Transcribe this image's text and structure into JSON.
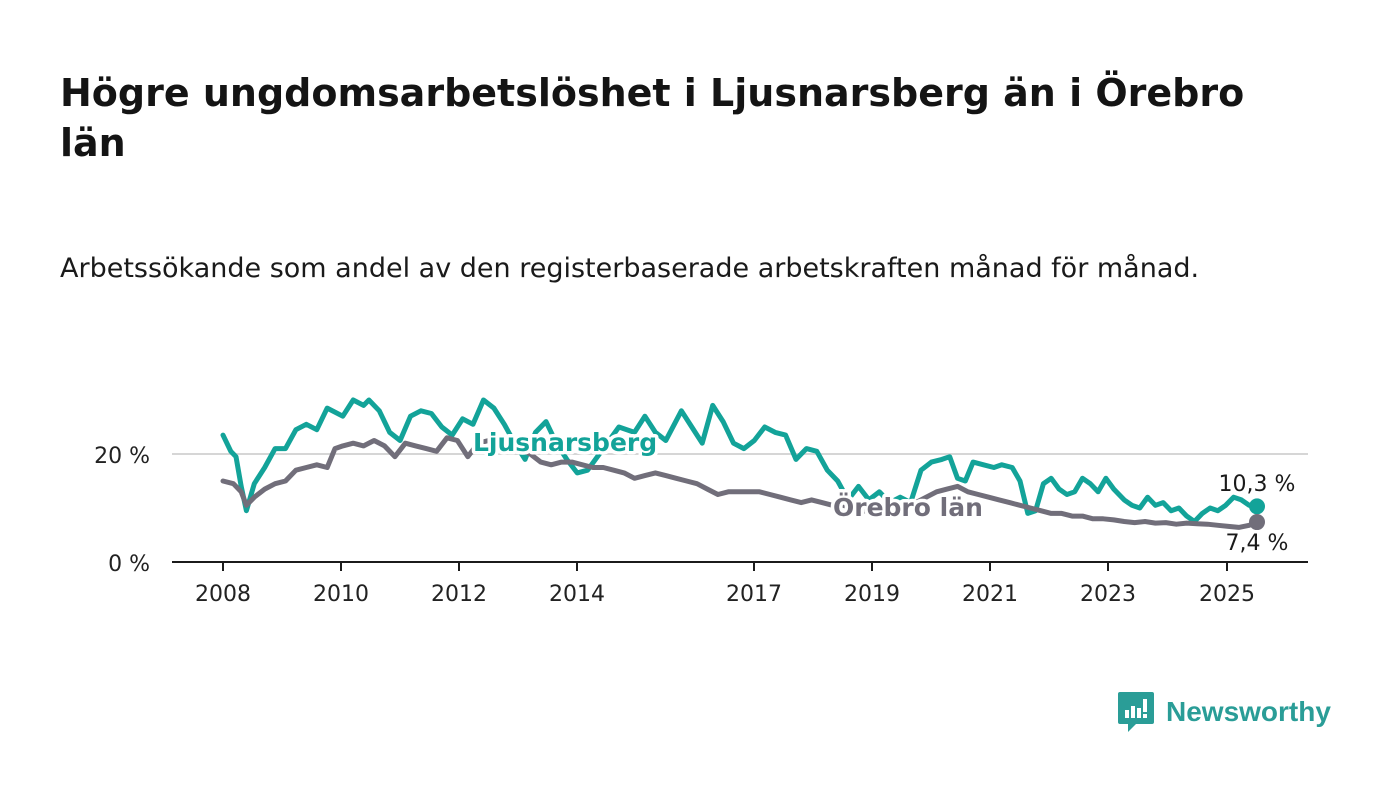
{
  "title": "Högre ungdomsarbetslöshet i Ljusnarsberg än i Örebro län",
  "subtitle": "Arbetssökande som andel av den registerbaserade arbetskraften månad för månad.",
  "brand": {
    "name": "Newsworthy",
    "icon": "newsworthy-logo-icon",
    "color": "#2a9d97"
  },
  "chart_data": {
    "type": "line",
    "x_ticks": [
      "2008",
      "2010",
      "2012",
      "2014",
      "2017",
      "2019",
      "2021",
      "2023",
      "2025"
    ],
    "y_ticks": [
      "0 %",
      "20 %"
    ],
    "ylim": [
      0,
      32
    ],
    "grid": "horizontal",
    "series": [
      {
        "name": "Ljusnarsberg",
        "color": "#13a399",
        "end_label": "10,3 %",
        "points": [
          [
            2008.0,
            23.5
          ],
          [
            2008.15,
            20.5
          ],
          [
            2008.25,
            19.5
          ],
          [
            2008.35,
            14.0
          ],
          [
            2008.45,
            9.5
          ],
          [
            2008.6,
            14.5
          ],
          [
            2008.8,
            17.5
          ],
          [
            2009.0,
            21.0
          ],
          [
            2009.2,
            21.0
          ],
          [
            2009.4,
            24.5
          ],
          [
            2009.6,
            25.5
          ],
          [
            2009.8,
            24.5
          ],
          [
            2010.0,
            28.5
          ],
          [
            2010.3,
            27.0
          ],
          [
            2010.5,
            30.0
          ],
          [
            2010.7,
            29.0
          ],
          [
            2010.8,
            30.0
          ],
          [
            2011.0,
            28.0
          ],
          [
            2011.2,
            24.0
          ],
          [
            2011.4,
            22.5
          ],
          [
            2011.6,
            27.0
          ],
          [
            2011.8,
            28.0
          ],
          [
            2012.0,
            27.5
          ],
          [
            2012.2,
            25.0
          ],
          [
            2012.4,
            23.5
          ],
          [
            2012.6,
            26.5
          ],
          [
            2012.8,
            25.5
          ],
          [
            2013.0,
            30.0
          ],
          [
            2013.2,
            28.5
          ],
          [
            2013.4,
            25.5
          ],
          [
            2013.6,
            22.0
          ],
          [
            2013.8,
            19.0
          ],
          [
            2014.0,
            24.0
          ],
          [
            2014.2,
            26.0
          ],
          [
            2014.4,
            22.0
          ],
          [
            2014.6,
            19.0
          ],
          [
            2014.8,
            16.5
          ],
          [
            2015.0,
            17.0
          ],
          [
            2015.3,
            21.0
          ],
          [
            2015.6,
            25.0
          ],
          [
            2015.9,
            24.0
          ],
          [
            2016.1,
            27.0
          ],
          [
            2016.3,
            24.0
          ],
          [
            2016.5,
            22.5
          ],
          [
            2016.8,
            28.0
          ],
          [
            2017.0,
            25.0
          ],
          [
            2017.2,
            22.0
          ],
          [
            2017.4,
            29.0
          ],
          [
            2017.6,
            26.0
          ],
          [
            2017.8,
            22.0
          ],
          [
            2018.0,
            21.0
          ],
          [
            2018.2,
            22.5
          ],
          [
            2018.4,
            25.0
          ],
          [
            2018.6,
            24.0
          ],
          [
            2018.8,
            23.5
          ],
          [
            2019.0,
            19.0
          ],
          [
            2019.2,
            21.0
          ],
          [
            2019.4,
            20.5
          ],
          [
            2019.6,
            17.0
          ],
          [
            2019.8,
            15.0
          ],
          [
            2020.0,
            11.5
          ],
          [
            2020.2,
            14.0
          ],
          [
            2020.4,
            11.5
          ],
          [
            2020.6,
            13.0
          ],
          [
            2020.8,
            11.0
          ],
          [
            2021.0,
            12.0
          ],
          [
            2021.2,
            11.0
          ],
          [
            2021.4,
            17.0
          ],
          [
            2021.6,
            18.5
          ],
          [
            2021.8,
            19.0
          ],
          [
            2021.95,
            19.5
          ],
          [
            2022.1,
            15.5
          ],
          [
            2022.25,
            15.0
          ],
          [
            2022.4,
            18.5
          ],
          [
            2022.6,
            18.0
          ],
          [
            2022.8,
            17.5
          ],
          [
            2022.95,
            18.0
          ],
          [
            2023.15,
            17.5
          ],
          [
            2023.3,
            15.0
          ],
          [
            2023.45,
            9.0
          ],
          [
            2023.6,
            9.5
          ],
          [
            2023.75,
            14.5
          ],
          [
            2023.9,
            15.5
          ],
          [
            2024.05,
            13.5
          ],
          [
            2024.2,
            12.5
          ],
          [
            2024.35,
            13.0
          ],
          [
            2024.5,
            15.5
          ],
          [
            2024.65,
            14.5
          ],
          [
            2024.8,
            13.0
          ],
          [
            2024.95,
            15.5
          ],
          [
            2025.1,
            13.5
          ],
          [
            2025.3,
            11.5
          ],
          [
            2025.45,
            10.5
          ],
          [
            2025.6,
            10.0
          ],
          [
            2025.75,
            12.0
          ],
          [
            2025.9,
            10.5
          ],
          [
            2026.05,
            11.0
          ],
          [
            2026.2,
            9.5
          ],
          [
            2026.35,
            10.0
          ],
          [
            2026.5,
            8.5
          ],
          [
            2026.65,
            7.5
          ],
          [
            2026.8,
            9.0
          ],
          [
            2026.95,
            10.0
          ],
          [
            2027.1,
            9.5
          ],
          [
            2027.25,
            10.5
          ],
          [
            2027.4,
            12.0
          ],
          [
            2027.55,
            11.5
          ],
          [
            2027.7,
            10.5
          ],
          [
            2027.85,
            10.3
          ]
        ]
      },
      {
        "name": "Örebro län",
        "color": "#716e7a",
        "end_label": "7,4 %",
        "points": [
          [
            2008.0,
            15.0
          ],
          [
            2008.2,
            14.5
          ],
          [
            2008.35,
            13.0
          ],
          [
            2008.45,
            10.5
          ],
          [
            2008.6,
            12.0
          ],
          [
            2008.8,
            13.5
          ],
          [
            2009.0,
            14.5
          ],
          [
            2009.2,
            15.0
          ],
          [
            2009.4,
            17.0
          ],
          [
            2009.6,
            17.5
          ],
          [
            2009.8,
            18.0
          ],
          [
            2010.0,
            17.5
          ],
          [
            2010.15,
            21.0
          ],
          [
            2010.3,
            21.5
          ],
          [
            2010.5,
            22.0
          ],
          [
            2010.7,
            21.5
          ],
          [
            2010.9,
            22.5
          ],
          [
            2011.1,
            21.5
          ],
          [
            2011.3,
            19.5
          ],
          [
            2011.5,
            22.0
          ],
          [
            2011.7,
            21.5
          ],
          [
            2011.9,
            21.0
          ],
          [
            2012.1,
            20.5
          ],
          [
            2012.3,
            23.0
          ],
          [
            2012.5,
            22.5
          ],
          [
            2012.7,
            19.5
          ],
          [
            2012.9,
            22.0
          ],
          [
            2013.1,
            22.5
          ],
          [
            2013.3,
            22.0
          ],
          [
            2013.5,
            23.0
          ],
          [
            2013.7,
            21.0
          ],
          [
            2013.9,
            20.0
          ],
          [
            2014.1,
            18.5
          ],
          [
            2014.3,
            18.0
          ],
          [
            2014.5,
            18.5
          ],
          [
            2014.7,
            18.5
          ],
          [
            2014.9,
            18.0
          ],
          [
            2015.1,
            17.5
          ],
          [
            2015.3,
            17.5
          ],
          [
            2015.5,
            17.0
          ],
          [
            2015.7,
            16.5
          ],
          [
            2015.9,
            15.5
          ],
          [
            2016.1,
            16.0
          ],
          [
            2016.3,
            16.5
          ],
          [
            2016.5,
            16.0
          ],
          [
            2016.7,
            15.5
          ],
          [
            2016.9,
            15.0
          ],
          [
            2017.1,
            14.5
          ],
          [
            2017.3,
            13.5
          ],
          [
            2017.5,
            12.5
          ],
          [
            2017.7,
            13.0
          ],
          [
            2017.9,
            13.0
          ],
          [
            2018.1,
            13.0
          ],
          [
            2018.3,
            13.0
          ],
          [
            2018.5,
            12.5
          ],
          [
            2018.7,
            12.0
          ],
          [
            2018.9,
            11.5
          ],
          [
            2019.1,
            11.0
          ],
          [
            2019.3,
            11.5
          ],
          [
            2019.5,
            11.0
          ],
          [
            2019.7,
            10.5
          ],
          [
            2019.9,
            10.5
          ],
          [
            2020.1,
            10.0
          ],
          [
            2020.3,
            9.5
          ],
          [
            2020.5,
            9.0
          ],
          [
            2020.7,
            8.5
          ],
          [
            2020.9,
            9.5
          ],
          [
            2021.1,
            10.0
          ],
          [
            2021.3,
            11.0
          ],
          [
            2021.5,
            12.0
          ],
          [
            2021.7,
            13.0
          ],
          [
            2021.9,
            13.5
          ],
          [
            2022.1,
            14.0
          ],
          [
            2022.3,
            13.0
          ],
          [
            2022.5,
            12.5
          ],
          [
            2022.7,
            12.0
          ],
          [
            2022.9,
            11.5
          ],
          [
            2023.1,
            11.0
          ],
          [
            2023.3,
            10.5
          ],
          [
            2023.5,
            10.0
          ],
          [
            2023.7,
            9.5
          ],
          [
            2023.9,
            9.0
          ],
          [
            2024.1,
            9.0
          ],
          [
            2024.3,
            8.5
          ],
          [
            2024.5,
            8.5
          ],
          [
            2024.7,
            8.0
          ],
          [
            2024.9,
            8.0
          ],
          [
            2025.1,
            7.8
          ],
          [
            2025.3,
            7.5
          ],
          [
            2025.5,
            7.3
          ],
          [
            2025.7,
            7.5
          ],
          [
            2025.9,
            7.2
          ],
          [
            2026.1,
            7.3
          ],
          [
            2026.3,
            7.0
          ],
          [
            2026.5,
            7.2
          ],
          [
            2026.7,
            7.1
          ],
          [
            2026.9,
            7.0
          ],
          [
            2027.1,
            6.8
          ],
          [
            2027.3,
            6.6
          ],
          [
            2027.5,
            6.4
          ],
          [
            2027.7,
            6.8
          ],
          [
            2027.85,
            7.4
          ]
        ]
      }
    ]
  }
}
